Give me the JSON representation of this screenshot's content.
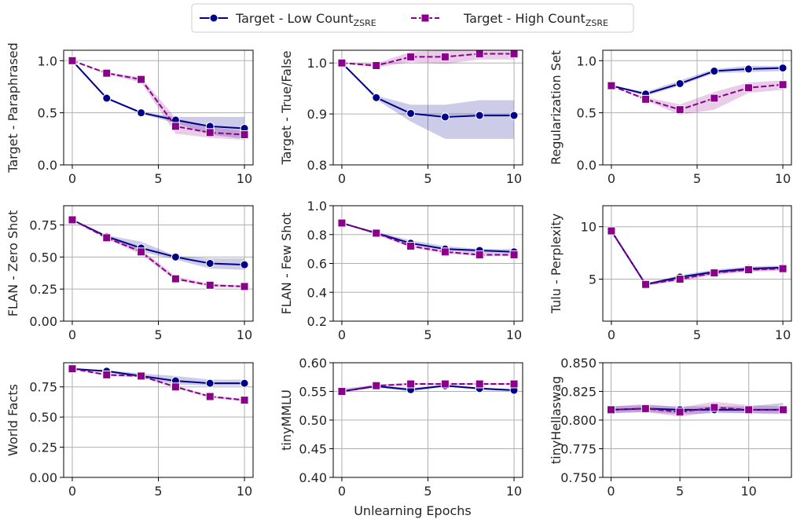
{
  "colors": {
    "low": "#00008b",
    "high": "#8b008b",
    "grid": "#b0b0b0"
  },
  "legend": [
    {
      "name_main": "Target - Low Count",
      "name_sub": "ZSRE",
      "series": "low"
    },
    {
      "name_main": "Target - High Count",
      "name_sub": "ZSRE",
      "series": "high"
    }
  ],
  "shared_xlabel": "Unlearning Epochs",
  "chart_data": [
    {
      "type": "line",
      "ylabel": "Target - Paraphrased",
      "xlim": [
        -0.5,
        10.5
      ],
      "ylim": [
        0.0,
        1.1
      ],
      "xticks": [
        0,
        5,
        10
      ],
      "xtick_labels": [
        "0",
        "5",
        "10"
      ],
      "yticks": [
        0.0,
        0.5,
        1.0
      ],
      "ytick_labels": [
        "0.0",
        "0.5",
        "1.0"
      ],
      "x": [
        0,
        2,
        4,
        6,
        8,
        10
      ],
      "series": [
        {
          "key": "low",
          "values": [
            1.0,
            0.64,
            0.5,
            0.43,
            0.37,
            0.35
          ],
          "lower": [
            1.0,
            0.63,
            0.49,
            0.4,
            0.29,
            0.25
          ],
          "upper": [
            1.0,
            0.65,
            0.51,
            0.46,
            0.46,
            0.46
          ]
        },
        {
          "key": "high",
          "values": [
            1.0,
            0.88,
            0.82,
            0.37,
            0.31,
            0.29
          ],
          "lower": [
            1.0,
            0.87,
            0.79,
            0.3,
            0.26,
            0.24
          ],
          "upper": [
            1.0,
            0.89,
            0.84,
            0.45,
            0.36,
            0.33
          ]
        }
      ]
    },
    {
      "type": "line",
      "ylabel": "Target - True/False",
      "xlim": [
        -0.5,
        10.5
      ],
      "ylim": [
        0.8,
        1.025
      ],
      "xticks": [
        0,
        5,
        10
      ],
      "xtick_labels": [
        "0",
        "5",
        "10"
      ],
      "yticks": [
        0.8,
        0.9,
        1.0
      ],
      "ytick_labels": [
        "0.8",
        "0.9",
        "1.0"
      ],
      "x": [
        0,
        2,
        4,
        6,
        8,
        10
      ],
      "series": [
        {
          "key": "low",
          "values": [
            1.0,
            0.932,
            0.901,
            0.894,
            0.897,
            0.897
          ],
          "lower": [
            1.0,
            0.928,
            0.885,
            0.851,
            0.851,
            0.851
          ],
          "upper": [
            1.0,
            0.936,
            0.918,
            0.918,
            0.927,
            0.927
          ]
        },
        {
          "key": "high",
          "values": [
            1.0,
            0.995,
            1.012,
            1.012,
            1.018,
            1.018
          ],
          "lower": [
            1.0,
            0.991,
            1.002,
            0.998,
            1.007,
            1.007
          ],
          "upper": [
            1.0,
            0.999,
            1.022,
            1.025,
            1.025,
            1.025
          ]
        }
      ]
    },
    {
      "type": "line",
      "ylabel": "Regularization Set",
      "xlim": [
        -0.5,
        10.5
      ],
      "ylim": [
        0.0,
        1.1
      ],
      "xticks": [
        0,
        5,
        10
      ],
      "xtick_labels": [
        "0",
        "5",
        "10"
      ],
      "yticks": [
        0.0,
        0.5,
        1.0
      ],
      "ytick_labels": [
        "0.0",
        "0.5",
        "1.0"
      ],
      "x": [
        0,
        2,
        4,
        6,
        8,
        10
      ],
      "series": [
        {
          "key": "low",
          "values": [
            0.76,
            0.68,
            0.78,
            0.9,
            0.92,
            0.93
          ],
          "lower": [
            0.76,
            0.66,
            0.76,
            0.88,
            0.89,
            0.9
          ],
          "upper": [
            0.76,
            0.7,
            0.81,
            0.92,
            0.95,
            0.95
          ]
        },
        {
          "key": "high",
          "values": [
            0.76,
            0.63,
            0.53,
            0.64,
            0.74,
            0.77
          ],
          "lower": [
            0.76,
            0.62,
            0.48,
            0.53,
            0.69,
            0.72
          ],
          "upper": [
            0.76,
            0.65,
            0.58,
            0.7,
            0.79,
            0.81
          ]
        }
      ]
    },
    {
      "type": "line",
      "ylabel": "FLAN - Zero Shot",
      "xlim": [
        -0.5,
        10.5
      ],
      "ylim": [
        0.0,
        0.9
      ],
      "xticks": [
        0,
        5,
        10
      ],
      "xtick_labels": [
        "0",
        "5",
        "10"
      ],
      "yticks": [
        0.0,
        0.25,
        0.5,
        0.75
      ],
      "ytick_labels": [
        "0.00",
        "0.25",
        "0.50",
        "0.75"
      ],
      "x": [
        0,
        2,
        4,
        6,
        8,
        10
      ],
      "series": [
        {
          "key": "low",
          "values": [
            0.79,
            0.66,
            0.57,
            0.5,
            0.45,
            0.44
          ],
          "lower": [
            0.79,
            0.65,
            0.54,
            0.48,
            0.41,
            0.4
          ],
          "upper": [
            0.79,
            0.67,
            0.62,
            0.51,
            0.49,
            0.49
          ]
        },
        {
          "key": "high",
          "values": [
            0.79,
            0.65,
            0.54,
            0.33,
            0.28,
            0.27
          ],
          "lower": [
            0.79,
            0.64,
            0.52,
            0.32,
            0.27,
            0.26
          ],
          "upper": [
            0.79,
            0.66,
            0.56,
            0.35,
            0.29,
            0.28
          ]
        }
      ]
    },
    {
      "type": "line",
      "ylabel": "FLAN - Few Shot",
      "xlim": [
        -0.5,
        10.5
      ],
      "ylim": [
        0.2,
        1.0
      ],
      "xticks": [
        0,
        5,
        10
      ],
      "xtick_labels": [
        "0",
        "5",
        "10"
      ],
      "yticks": [
        0.2,
        0.4,
        0.6,
        0.8,
        1.0
      ],
      "ytick_labels": [
        "0.2",
        "0.4",
        "0.6",
        "0.8",
        "1.0"
      ],
      "x": [
        0,
        2,
        4,
        6,
        8,
        10
      ],
      "series": [
        {
          "key": "low",
          "values": [
            0.88,
            0.81,
            0.74,
            0.7,
            0.69,
            0.68
          ],
          "lower": [
            0.88,
            0.8,
            0.73,
            0.69,
            0.67,
            0.67
          ],
          "upper": [
            0.88,
            0.82,
            0.76,
            0.72,
            0.7,
            0.7
          ]
        },
        {
          "key": "high",
          "values": [
            0.88,
            0.81,
            0.72,
            0.68,
            0.66,
            0.66
          ],
          "lower": [
            0.88,
            0.8,
            0.71,
            0.67,
            0.65,
            0.65
          ],
          "upper": [
            0.88,
            0.82,
            0.73,
            0.69,
            0.67,
            0.67
          ]
        }
      ]
    },
    {
      "type": "line",
      "ylabel": "Tulu - Perplexity",
      "xlim": [
        -0.5,
        10.5
      ],
      "ylim": [
        1.0,
        12.0
      ],
      "xticks": [
        0,
        5,
        10
      ],
      "xtick_labels": [
        "0",
        "5",
        "10"
      ],
      "yticks": [
        5,
        10
      ],
      "ytick_labels": [
        "5",
        "10"
      ],
      "x": [
        0,
        2,
        4,
        6,
        8,
        10
      ],
      "series": [
        {
          "key": "low",
          "values": [
            9.6,
            4.5,
            5.2,
            5.7,
            6.0,
            6.1
          ],
          "lower": [
            9.5,
            4.4,
            5.0,
            5.5,
            5.8,
            5.9
          ],
          "upper": [
            9.7,
            4.6,
            5.4,
            5.9,
            6.2,
            6.3
          ]
        },
        {
          "key": "high",
          "values": [
            9.6,
            4.5,
            5.0,
            5.6,
            5.9,
            6.0
          ],
          "lower": [
            9.5,
            4.4,
            4.8,
            5.4,
            5.7,
            5.8
          ],
          "upper": [
            9.7,
            4.6,
            5.2,
            5.8,
            6.1,
            6.2
          ]
        }
      ]
    },
    {
      "type": "line",
      "ylabel": "World Facts",
      "xlim": [
        -0.5,
        10.5
      ],
      "ylim": [
        0.0,
        0.95
      ],
      "xticks": [
        0,
        5,
        10
      ],
      "xtick_labels": [
        "0",
        "5",
        "10"
      ],
      "yticks": [
        0.0,
        0.25,
        0.5,
        0.75
      ],
      "ytick_labels": [
        "0.00",
        "0.25",
        "0.50",
        "0.75"
      ],
      "x": [
        0,
        2,
        4,
        6,
        8,
        10
      ],
      "series": [
        {
          "key": "low",
          "values": [
            0.9,
            0.88,
            0.84,
            0.8,
            0.78,
            0.78
          ],
          "lower": [
            0.9,
            0.87,
            0.83,
            0.77,
            0.76,
            0.76
          ],
          "upper": [
            0.9,
            0.89,
            0.86,
            0.84,
            0.81,
            0.81
          ]
        },
        {
          "key": "high",
          "values": [
            0.9,
            0.85,
            0.84,
            0.75,
            0.67,
            0.64
          ],
          "lower": [
            0.9,
            0.84,
            0.83,
            0.74,
            0.66,
            0.63
          ],
          "upper": [
            0.9,
            0.86,
            0.85,
            0.76,
            0.68,
            0.65
          ]
        }
      ]
    },
    {
      "type": "line",
      "ylabel": "tinyMMLU",
      "xlim": [
        -0.5,
        10.5
      ],
      "ylim": [
        0.4,
        0.6
      ],
      "xticks": [
        0,
        5,
        10
      ],
      "xtick_labels": [
        "0",
        "5",
        "10"
      ],
      "yticks": [
        0.4,
        0.45,
        0.5,
        0.55,
        0.6
      ],
      "ytick_labels": [
        "0.40",
        "0.45",
        "0.50",
        "0.55",
        "0.60"
      ],
      "x": [
        0,
        2,
        4,
        6,
        8,
        10
      ],
      "series": [
        {
          "key": "low",
          "values": [
            0.55,
            0.559,
            0.553,
            0.56,
            0.555,
            0.552
          ],
          "lower": [
            0.549,
            0.557,
            0.55,
            0.558,
            0.553,
            0.55
          ],
          "upper": [
            0.555,
            0.561,
            0.556,
            0.562,
            0.557,
            0.554
          ]
        },
        {
          "key": "high",
          "values": [
            0.55,
            0.56,
            0.563,
            0.563,
            0.563,
            0.563
          ],
          "lower": [
            0.548,
            0.558,
            0.561,
            0.561,
            0.561,
            0.561
          ],
          "upper": [
            0.552,
            0.562,
            0.565,
            0.565,
            0.565,
            0.565
          ]
        }
      ]
    },
    {
      "type": "line",
      "ylabel": "tinyHellaswag",
      "xlim": [
        -0.6,
        13.1
      ],
      "ylim": [
        0.75,
        0.85
      ],
      "xticks": [
        0,
        5,
        10
      ],
      "xtick_labels": [
        "0",
        "5",
        "10"
      ],
      "yticks": [
        0.75,
        0.775,
        0.8,
        0.825,
        0.85
      ],
      "ytick_labels": [
        "0.750",
        "0.775",
        "0.800",
        "0.825",
        "0.850"
      ],
      "x": [
        0,
        2.5,
        5,
        7.5,
        10,
        12.5
      ],
      "series": [
        {
          "key": "low",
          "values": [
            0.809,
            0.81,
            0.809,
            0.809,
            0.809,
            0.809
          ],
          "lower": [
            0.806,
            0.807,
            0.805,
            0.806,
            0.806,
            0.805
          ],
          "upper": [
            0.812,
            0.813,
            0.812,
            0.812,
            0.812,
            0.815
          ]
        },
        {
          "key": "high",
          "values": [
            0.809,
            0.81,
            0.807,
            0.811,
            0.809,
            0.809
          ],
          "lower": [
            0.806,
            0.807,
            0.803,
            0.807,
            0.806,
            0.806
          ],
          "upper": [
            0.812,
            0.814,
            0.811,
            0.816,
            0.813,
            0.812
          ]
        }
      ]
    }
  ]
}
